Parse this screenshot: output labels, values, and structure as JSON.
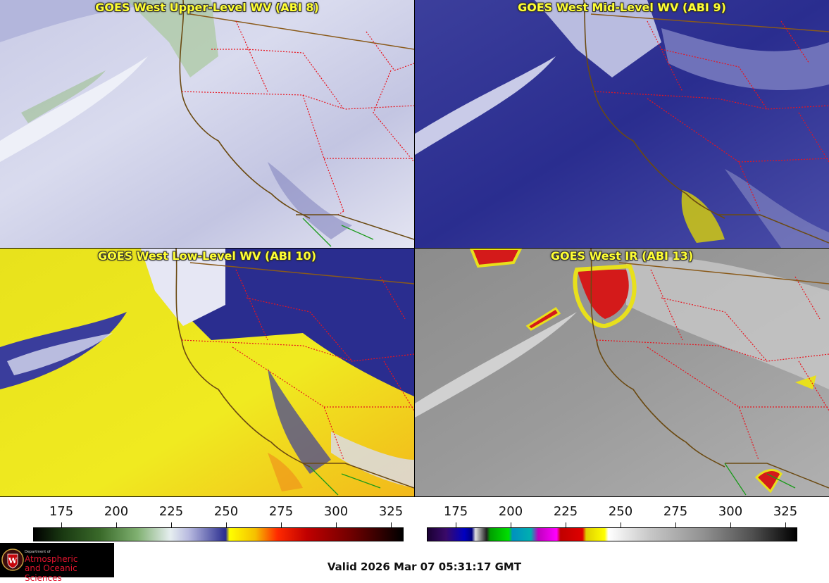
{
  "panels": [
    {
      "title": "GOES West Upper-Level WV (ABI 8)",
      "scheme": "upper"
    },
    {
      "title": "GOES West Mid-Level WV (ABI 9)",
      "scheme": "mid"
    },
    {
      "title": "GOES West Low-Level WV (ABI 10)",
      "scheme": "low"
    },
    {
      "title": "GOES West IR (ABI 13)",
      "scheme": "ir"
    }
  ],
  "colorbars": {
    "wv": {
      "ticks": [
        "175",
        "200",
        "225",
        "250",
        "275",
        "300",
        "325"
      ]
    },
    "ir": {
      "ticks": [
        "175",
        "200",
        "225",
        "250",
        "275",
        "300",
        "325"
      ]
    }
  },
  "valid_time": "Valid 2026 Mar 07 05:31:17 GMT",
  "logo": {
    "dept": "Department of",
    "line1": "Atmospheric",
    "line2": "and Oceanic Sciences"
  },
  "colors": {
    "state_border": "#e8141e",
    "coast": "#6b4a12",
    "mexico_border": "#1a9a1a"
  }
}
